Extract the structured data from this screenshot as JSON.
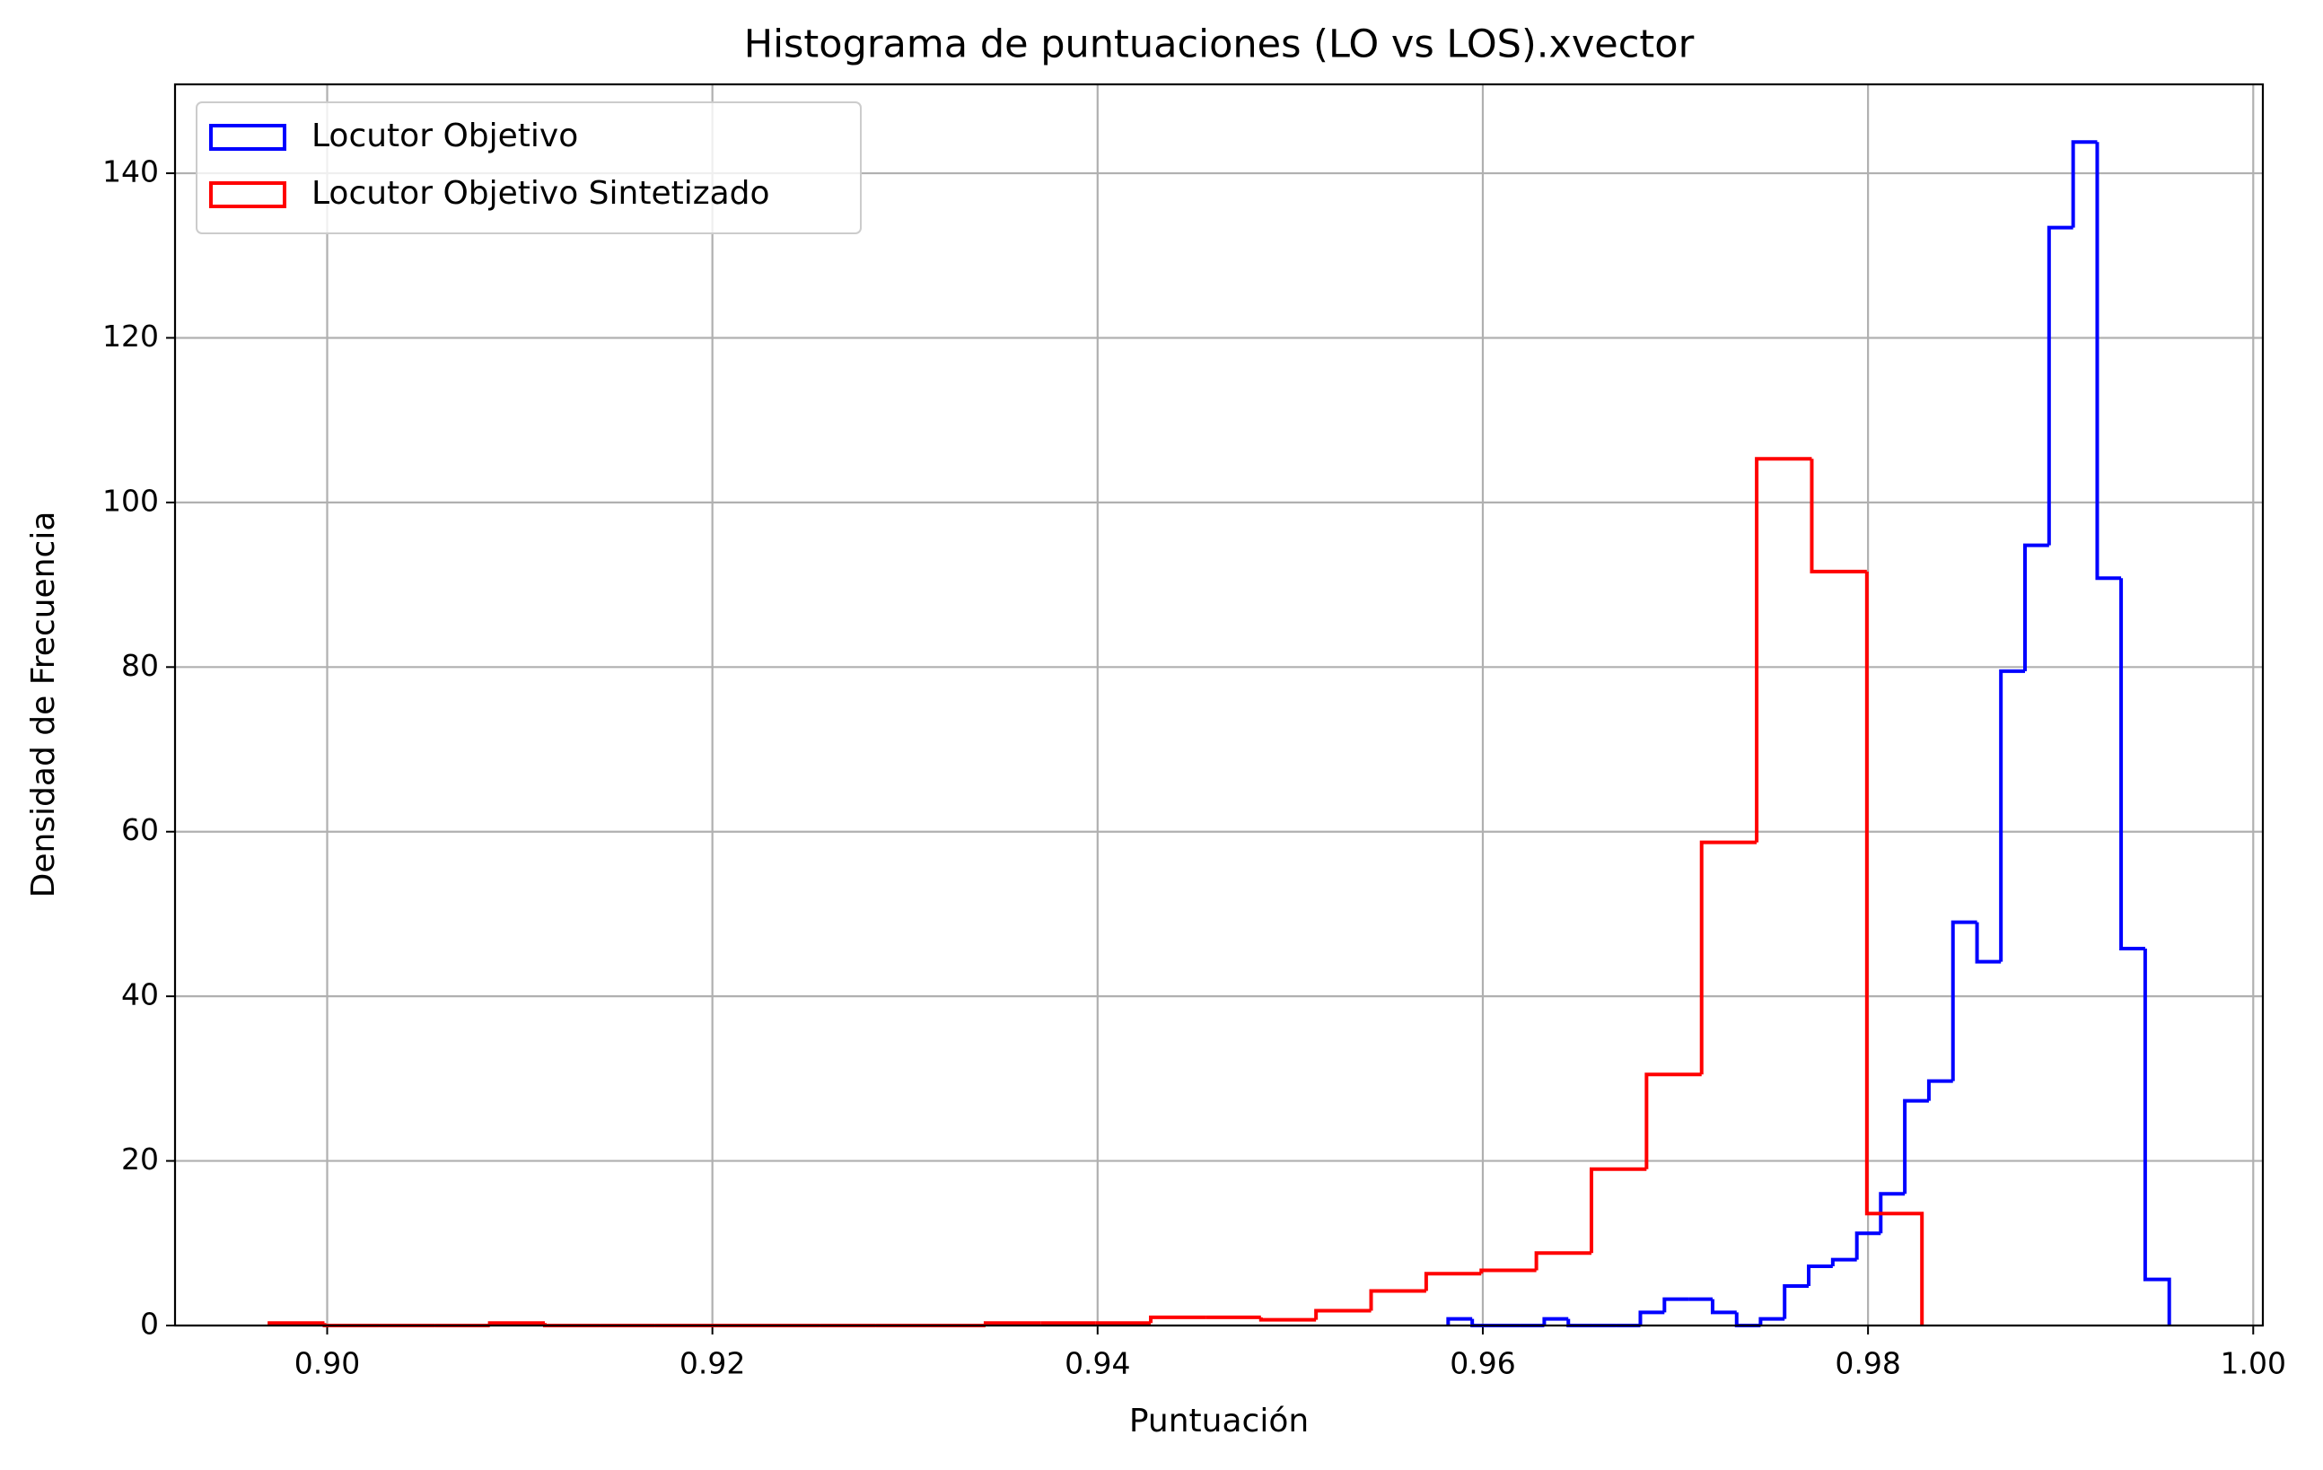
{
  "chart_data": {
    "type": "histogram",
    "title": "Histograma de puntuaciones (LO vs LOS).xvector",
    "x_label": "Puntuación",
    "y_label": "Densidad de Frecuencia",
    "xlim": [
      0.8921,
      1.0005
    ],
    "ylim": [
      0,
      150.8
    ],
    "xticks": [
      {
        "value": 0.9,
        "label": "0.90"
      },
      {
        "value": 0.92,
        "label": "0.92"
      },
      {
        "value": 0.94,
        "label": "0.94"
      },
      {
        "value": 0.96,
        "label": "0.96"
      },
      {
        "value": 0.98,
        "label": "0.98"
      },
      {
        "value": 1.0,
        "label": "1.00"
      }
    ],
    "yticks": [
      0,
      20,
      40,
      60,
      80,
      100,
      120,
      140
    ],
    "grid": true,
    "legend": "upper left",
    "series": [
      {
        "name": "Locutor Objetivo",
        "color": "#0000ff",
        "bins": [
          0.9582,
          0.95945,
          0.9607,
          0.96194,
          0.96319,
          0.96444,
          0.96569,
          0.96694,
          0.96818,
          0.96943,
          0.97068,
          0.97193,
          0.97318,
          0.97442,
          0.97567,
          0.97692,
          0.97817,
          0.97942,
          0.98066,
          0.98191,
          0.98316,
          0.98441,
          0.98566,
          0.9869,
          0.98815,
          0.9894,
          0.99065,
          0.9919,
          0.99314,
          0.99439,
          0.99564
        ],
        "values": [
          0.8,
          0,
          0,
          0,
          0.8,
          0,
          0,
          0,
          1.6,
          3.2,
          3.2,
          1.6,
          0,
          0.8,
          4.8,
          7.2,
          8.0,
          11.2,
          16.0,
          27.3,
          29.7,
          49.0,
          44.2,
          79.5,
          94.8,
          133.4,
          143.8,
          90.8,
          45.8,
          5.6
        ]
      },
      {
        "name": "Locutor Objetivo Sintetizado",
        "color": "#ff0000",
        "bins": [
          0.897,
          0.89986,
          0.90272,
          0.90558,
          0.90844,
          0.9113,
          0.91416,
          0.91702,
          0.91988,
          0.92274,
          0.9256,
          0.92846,
          0.93132,
          0.93418,
          0.93704,
          0.9399,
          0.94276,
          0.94562,
          0.94848,
          0.95134,
          0.9542,
          0.95706,
          0.95992,
          0.96278,
          0.96564,
          0.9685,
          0.97136,
          0.97422,
          0.97708,
          0.97994,
          0.9828
        ],
        "values": [
          0.3,
          0,
          0,
          0,
          0.3,
          0,
          0,
          0,
          0,
          0,
          0,
          0,
          0,
          0.3,
          0.3,
          0.3,
          1.0,
          1.0,
          0.7,
          1.8,
          4.2,
          6.3,
          6.7,
          8.8,
          19.0,
          30.5,
          58.7,
          105.3,
          91.6,
          13.6
        ]
      }
    ]
  }
}
